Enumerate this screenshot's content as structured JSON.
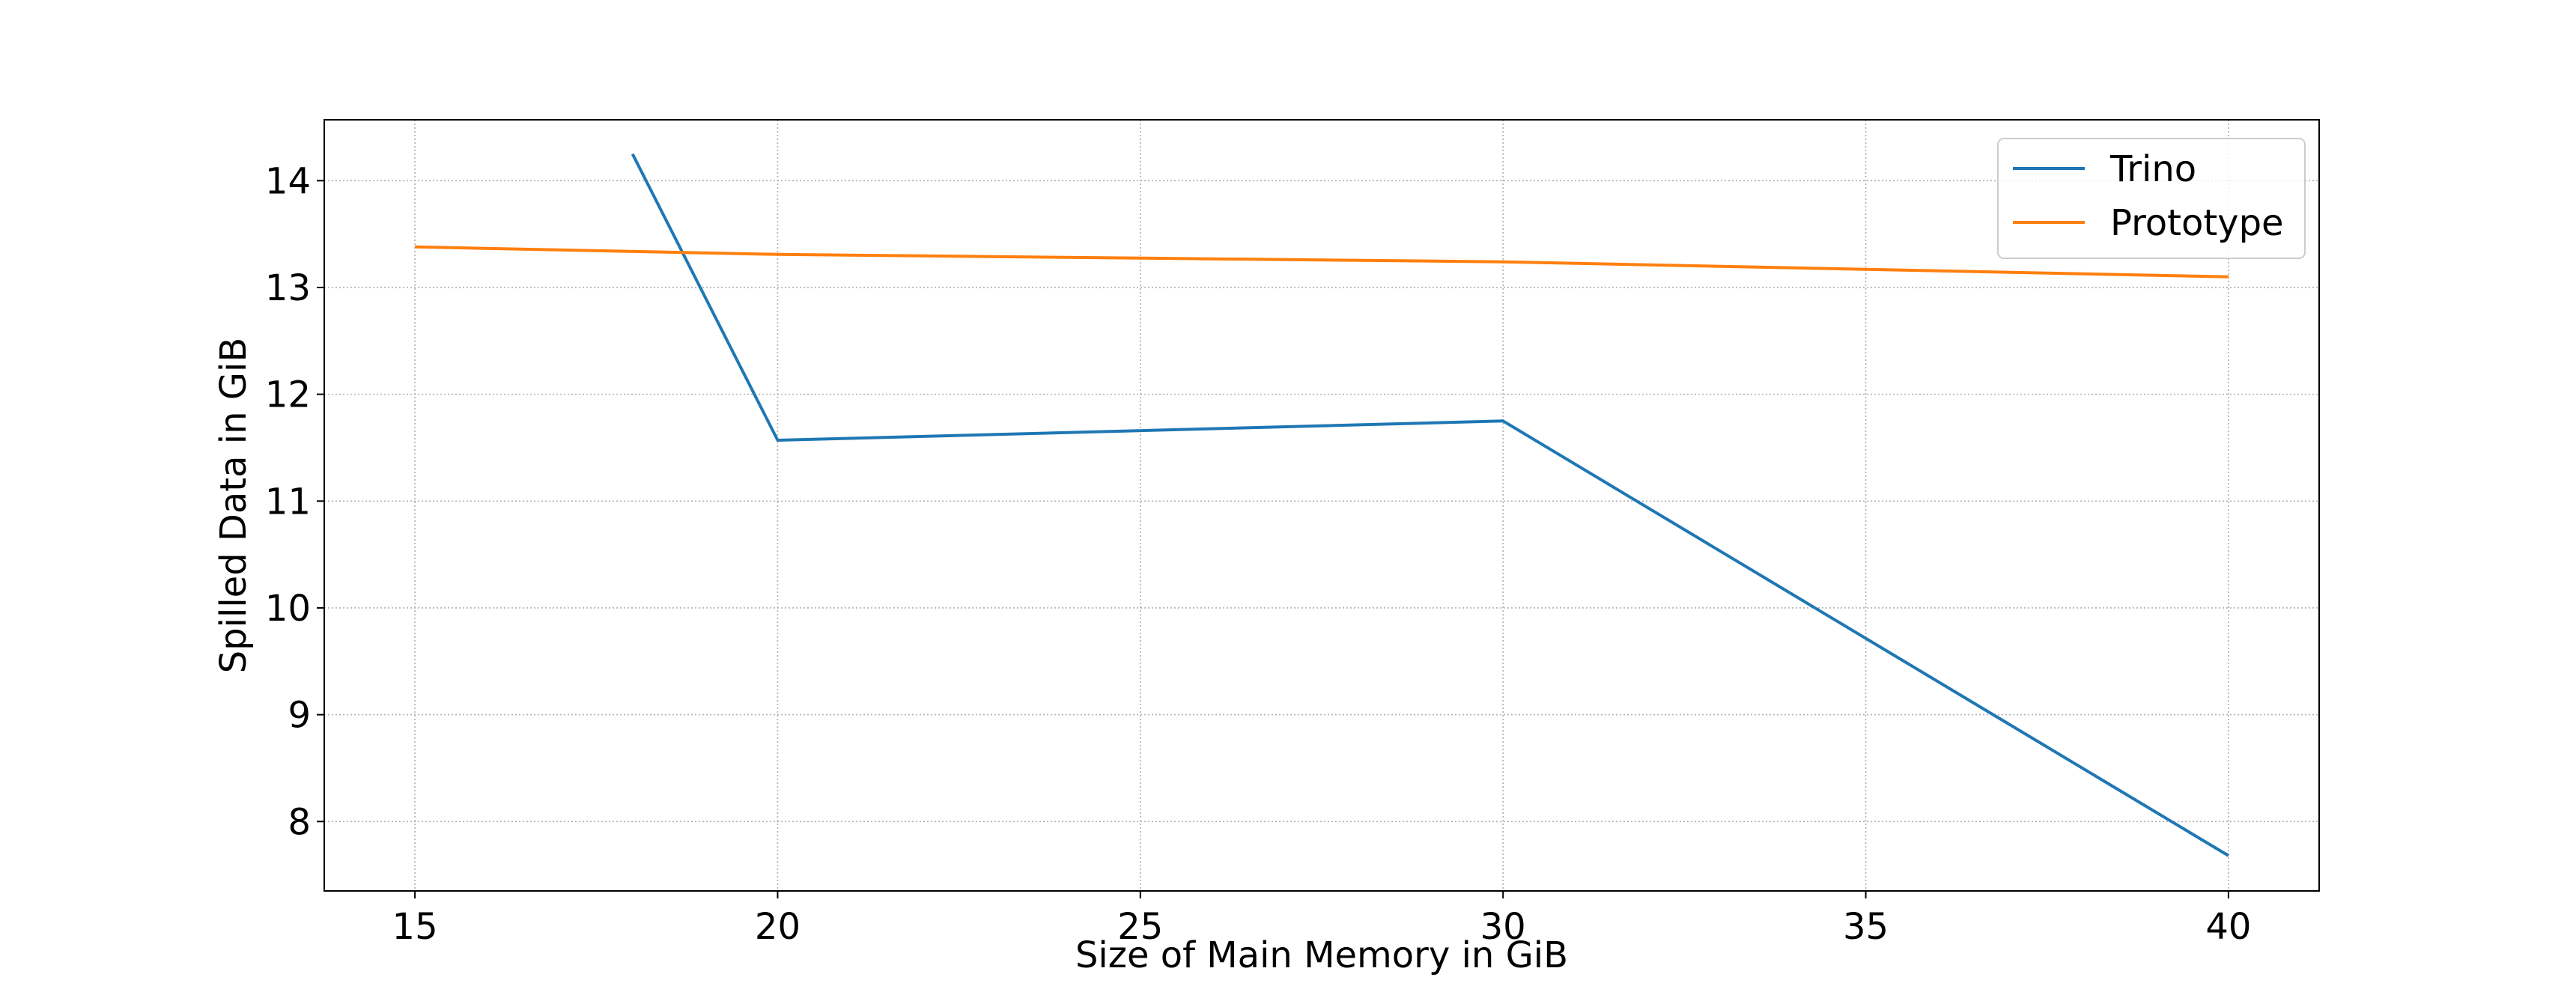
{
  "chart_data": {
    "type": "line",
    "title": "",
    "xlabel": "Size of Main Memory in GiB",
    "ylabel": "Spilled Data in GiB",
    "xlim": [
      13.75,
      41.25
    ],
    "ylim": [
      7.35,
      14.57
    ],
    "xticks": [
      15,
      20,
      25,
      30,
      35,
      40
    ],
    "yticks": [
      8,
      9,
      10,
      11,
      12,
      13,
      14
    ],
    "xtick_labels": [
      "15",
      "20",
      "25",
      "30",
      "35",
      "40"
    ],
    "ytick_labels": [
      "8",
      "9",
      "10",
      "11",
      "12",
      "13",
      "14"
    ],
    "grid": true,
    "legend": "top-right",
    "series": [
      {
        "name": "Trino",
        "color": "#1f77b4",
        "x": [
          18,
          20,
          30,
          40
        ],
        "y": [
          14.25,
          11.57,
          11.75,
          7.68
        ]
      },
      {
        "name": "Prototype",
        "color": "#ff7f0e",
        "x": [
          15,
          20,
          30,
          40
        ],
        "y": [
          13.38,
          13.31,
          13.24,
          13.1
        ]
      }
    ]
  }
}
